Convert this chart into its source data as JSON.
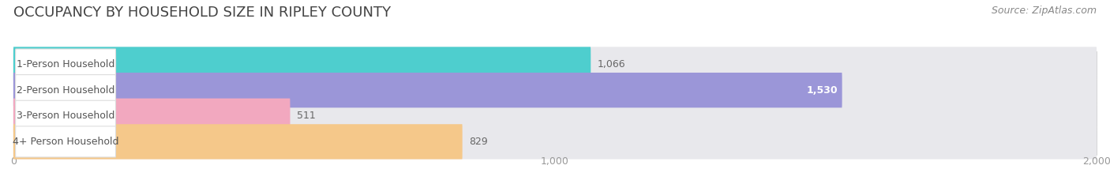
{
  "title": "OCCUPANCY BY HOUSEHOLD SIZE IN RIPLEY COUNTY",
  "source": "Source: ZipAtlas.com",
  "categories": [
    "1-Person Household",
    "2-Person Household",
    "3-Person Household",
    "4+ Person Household"
  ],
  "values": [
    1066,
    1530,
    511,
    829
  ],
  "bar_colors": [
    "#4ECECE",
    "#9B96D8",
    "#F2A8BF",
    "#F5C88A"
  ],
  "value_labels": [
    "1,066",
    "1,530",
    "511",
    "829"
  ],
  "value_inside": [
    false,
    true,
    false,
    false
  ],
  "xlim_min": 0,
  "xlim_max": 2000,
  "xticks": [
    0,
    1000,
    2000
  ],
  "xtick_labels": [
    "0",
    "1,000",
    "2,000"
  ],
  "background_color": "#ffffff",
  "bar_bg_color": "#e8e8ec",
  "title_fontsize": 13,
  "source_fontsize": 9,
  "label_fontsize": 9,
  "value_fontsize": 9,
  "tick_fontsize": 9,
  "title_color": "#444444",
  "source_color": "#888888",
  "label_color": "#555555",
  "value_color_outside": "#666666",
  "value_color_inside": "#ffffff"
}
